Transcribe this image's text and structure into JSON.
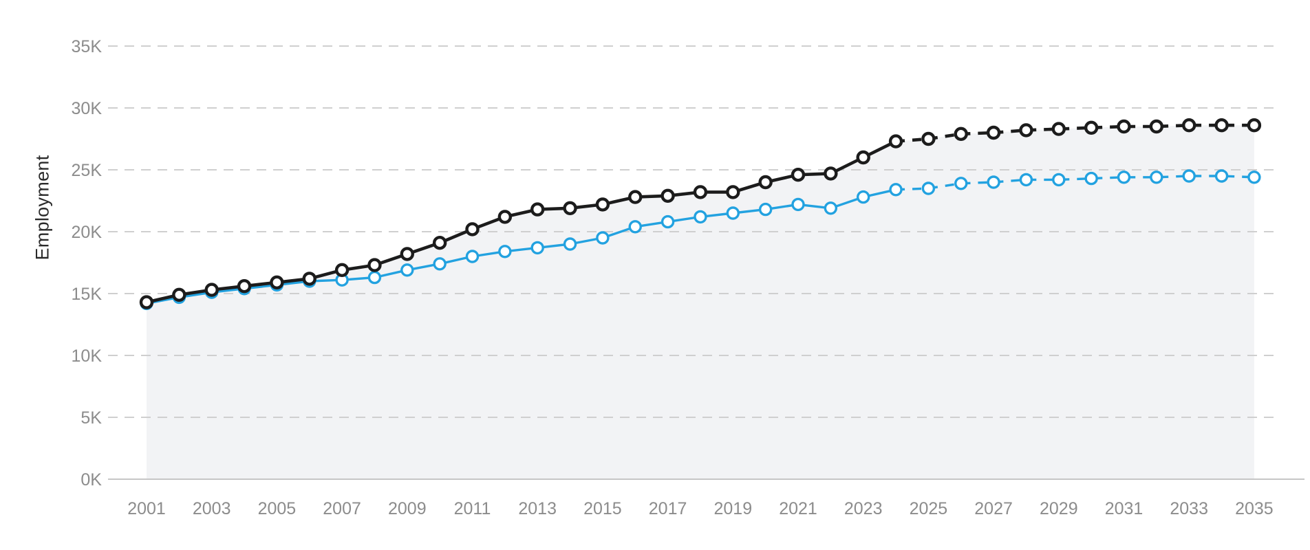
{
  "chart_data": {
    "type": "line",
    "title": "",
    "xlabel": "",
    "ylabel": "Employment",
    "ylim": [
      0,
      37000
    ],
    "grid": "dashed-horizontal",
    "legend": "none",
    "y_tick_labels": [
      "0K",
      "5K",
      "10K",
      "15K",
      "20K",
      "25K",
      "30K",
      "35K"
    ],
    "y_tick_step": 5000,
    "x": [
      2001,
      2002,
      2003,
      2004,
      2005,
      2006,
      2007,
      2008,
      2009,
      2010,
      2011,
      2012,
      2013,
      2014,
      2015,
      2016,
      2017,
      2018,
      2019,
      2020,
      2021,
      2022,
      2023,
      2024,
      2025,
      2026,
      2027,
      2028,
      2029,
      2030,
      2031,
      2032,
      2033,
      2034,
      2035
    ],
    "x_tick_years": [
      2001,
      2003,
      2005,
      2007,
      2009,
      2011,
      2013,
      2015,
      2017,
      2019,
      2021,
      2023,
      2025,
      2027,
      2029,
      2031,
      2033,
      2035
    ],
    "projection_start_year": 2024,
    "series": [
      {
        "name": "black",
        "color": "#1c1c1c",
        "marker": "open-circle",
        "line_style": "solid-then-dashed-after-2024",
        "values": [
          14300,
          14900,
          15300,
          15600,
          15900,
          16200,
          16900,
          17300,
          18200,
          19100,
          20200,
          21200,
          21800,
          21900,
          22200,
          22800,
          22900,
          23200,
          23200,
          24000,
          24600,
          24700,
          26000,
          27300,
          27500,
          27900,
          28000,
          28200,
          28300,
          28400,
          28500,
          28500,
          28600,
          28600,
          28600
        ]
      },
      {
        "name": "blue",
        "color": "#23a2e0",
        "marker": "open-circle",
        "line_style": "solid-then-dashed-after-2024",
        "values": [
          14200,
          14700,
          15100,
          15400,
          15700,
          16000,
          16100,
          16300,
          16900,
          17400,
          18000,
          18400,
          18700,
          19000,
          19500,
          20400,
          20800,
          21200,
          21500,
          21800,
          22200,
          21900,
          22800,
          23400,
          23500,
          23900,
          24000,
          24200,
          24200,
          24300,
          24400,
          24400,
          24500,
          24500,
          24400
        ]
      }
    ],
    "colors": {
      "area_fill": "#f2f3f5",
      "gridline": "#cfcfcf",
      "axis_line": "#c6c6c6",
      "tick_text": "#8c8c8c",
      "axis_title_text": "#2a2a2a",
      "marker_fill": "#ffffff"
    }
  }
}
